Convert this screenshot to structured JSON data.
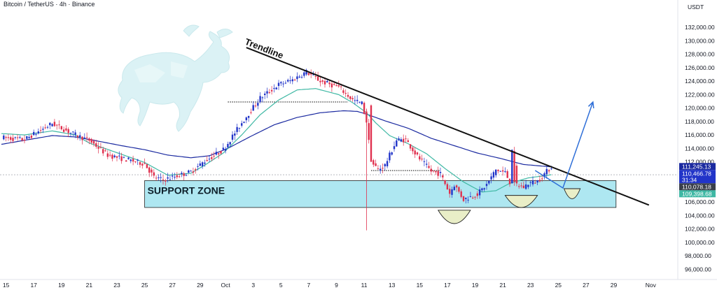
{
  "header": {
    "title": "Bitcoin / TetherUS · 4h · Binance",
    "currency": "USDT"
  },
  "colors": {
    "up": "#2134c9",
    "down": "#e0304e",
    "ema_fast": "#3fb8a4",
    "ema_slow": "#1b2aa0",
    "trend": "#111111",
    "zone_fill": "#aee7f1",
    "zone_stroke": "#222222",
    "projection": "#2f6fd8",
    "curve": "#e9eec7"
  },
  "chart_data": {
    "type": "candlestick",
    "ylim": [
      95000,
      134000
    ],
    "y_ticks": [
      96000,
      98000,
      100000,
      102000,
      104000,
      106000,
      108000,
      110000,
      112000,
      114000,
      116000,
      118000,
      120000,
      122000,
      124000,
      126000,
      128000,
      130000,
      132000
    ],
    "y_tick_labels": [
      "96,000.00",
      "98,000.00",
      "100,000.00",
      "102,000.00",
      "104,000.00",
      "106,000.00",
      "108,000.00",
      "110,000.00",
      "112,000.00",
      "114,000.00",
      "116,000.00",
      "118,000.00",
      "120,000.00",
      "122,000.00",
      "124,000.00",
      "126,000.00",
      "128,000.00",
      "130,000.00",
      "132,000.00"
    ],
    "x_ticks": [
      {
        "label": "15",
        "idx": 2
      },
      {
        "label": "17",
        "idx": 14
      },
      {
        "label": "19",
        "idx": 26
      },
      {
        "label": "21",
        "idx": 38
      },
      {
        "label": "23",
        "idx": 50
      },
      {
        "label": "25",
        "idx": 62
      },
      {
        "label": "27",
        "idx": 74
      },
      {
        "label": "29",
        "idx": 86
      },
      {
        "label": "Oct",
        "idx": 97
      },
      {
        "label": "3",
        "idx": 109
      },
      {
        "label": "5",
        "idx": 121
      },
      {
        "label": "7",
        "idx": 133
      },
      {
        "label": "9",
        "idx": 145
      },
      {
        "label": "11",
        "idx": 157
      },
      {
        "label": "13",
        "idx": 169
      },
      {
        "label": "15",
        "idx": 181
      },
      {
        "label": "17",
        "idx": 193
      },
      {
        "label": "19",
        "idx": 205
      },
      {
        "label": "21",
        "idx": 217
      },
      {
        "label": "23",
        "idx": 229
      },
      {
        "label": "25",
        "idx": 241
      },
      {
        "label": "27",
        "idx": 253
      },
      {
        "label": "29",
        "idx": 265
      },
      {
        "label": "Nov",
        "idx": 281
      }
    ],
    "close_anchors": [
      [
        0,
        115600
      ],
      [
        10,
        115300
      ],
      [
        22,
        117700
      ],
      [
        32,
        116000
      ],
      [
        38,
        115200
      ],
      [
        46,
        113000
      ],
      [
        52,
        112500
      ],
      [
        62,
        111700
      ],
      [
        66,
        109700
      ],
      [
        70,
        109300
      ],
      [
        82,
        110500
      ],
      [
        88,
        112100
      ],
      [
        96,
        113800
      ],
      [
        104,
        117800
      ],
      [
        112,
        121500
      ],
      [
        120,
        123500
      ],
      [
        126,
        124200
      ],
      [
        132,
        125400
      ],
      [
        138,
        124000
      ],
      [
        146,
        123100
      ],
      [
        152,
        121200
      ],
      [
        156,
        120700
      ],
      [
        158,
        118000
      ],
      [
        160,
        112000
      ],
      [
        163,
        110800
      ],
      [
        166,
        111500
      ],
      [
        171,
        115200
      ],
      [
        175,
        115300
      ],
      [
        180,
        112800
      ],
      [
        186,
        110600
      ],
      [
        190,
        110200
      ],
      [
        194,
        107300
      ],
      [
        196,
        108600
      ],
      [
        200,
        106400
      ],
      [
        206,
        107200
      ],
      [
        210,
        108600
      ],
      [
        214,
        110800
      ],
      [
        218,
        110400
      ],
      [
        220,
        109000
      ],
      [
        221,
        113800
      ],
      [
        223,
        108600
      ],
      [
        226,
        108200
      ],
      [
        228,
        108800
      ],
      [
        232,
        109100
      ],
      [
        238,
        111300
      ]
    ],
    "ema_fast_anchors": [
      [
        0,
        116200
      ],
      [
        10,
        116000
      ],
      [
        22,
        116600
      ],
      [
        32,
        116000
      ],
      [
        38,
        114800
      ],
      [
        48,
        113600
      ],
      [
        62,
        111900
      ],
      [
        72,
        110000
      ],
      [
        82,
        110300
      ],
      [
        88,
        111500
      ],
      [
        96,
        113300
      ],
      [
        104,
        116000
      ],
      [
        112,
        119000
      ],
      [
        120,
        121200
      ],
      [
        128,
        122700
      ],
      [
        136,
        122900
      ],
      [
        146,
        122000
      ],
      [
        152,
        120800
      ],
      [
        158,
        119300
      ],
      [
        162,
        117800
      ],
      [
        168,
        115900
      ],
      [
        176,
        114700
      ],
      [
        184,
        113200
      ],
      [
        192,
        111000
      ],
      [
        200,
        109000
      ],
      [
        208,
        107500
      ],
      [
        214,
        107700
      ],
      [
        220,
        108800
      ],
      [
        228,
        109600
      ],
      [
        238,
        110078
      ]
    ],
    "ema_slow_anchors": [
      [
        0,
        114600
      ],
      [
        10,
        115200
      ],
      [
        22,
        115900
      ],
      [
        32,
        115700
      ],
      [
        40,
        115200
      ],
      [
        52,
        114400
      ],
      [
        62,
        113800
      ],
      [
        72,
        113000
      ],
      [
        82,
        112600
      ],
      [
        90,
        112900
      ],
      [
        98,
        114000
      ],
      [
        108,
        115800
      ],
      [
        118,
        117500
      ],
      [
        128,
        118600
      ],
      [
        138,
        119300
      ],
      [
        148,
        119600
      ],
      [
        154,
        119500
      ],
      [
        158,
        119100
      ],
      [
        166,
        118100
      ],
      [
        176,
        117000
      ],
      [
        186,
        115500
      ],
      [
        196,
        114400
      ],
      [
        206,
        113300
      ],
      [
        216,
        112500
      ],
      [
        226,
        111600
      ],
      [
        238,
        111245
      ]
    ],
    "current_price": 110078.18,
    "price_badges": [
      {
        "value": 111245.13,
        "label": "111,245.13",
        "bg": "#1b2aa0"
      },
      {
        "value": 110466.78,
        "label": "110,466.78",
        "bg": "#2134c9",
        "sub": "31:34"
      },
      {
        "value": 110078.18,
        "label": "110,078.18",
        "bg": "#3a3f4b"
      },
      {
        "value": 109398.68,
        "label": "109,398.68",
        "bg": "#3fb8a4"
      }
    ],
    "support_zone": {
      "label": "SUPPORT ZONE",
      "y_low": 105200,
      "y_high": 109200,
      "x_from": 62,
      "x_to": 266
    },
    "trendline": {
      "label": "Trendline",
      "from": [
        88,
        131000
      ],
      "to": [
        256,
        106400
      ]
    },
    "dotted_levels": [
      {
        "y": 120900,
        "x_from": 98,
        "x_to": 150
      },
      {
        "y": 110700,
        "x_from": 160,
        "x_to": 190
      }
    ],
    "wick_line": {
      "idx": 158,
      "y_from": 119800,
      "y_to": 101800
    },
    "projection": [
      [
        231,
        110700
      ],
      [
        243,
        108100
      ],
      [
        256,
        120900
      ]
    ],
    "curves": [
      {
        "center_idx": 196,
        "y_top": 104800,
        "depth": 2000,
        "half_width": 7
      },
      {
        "center_idx": 225,
        "y_top": 107000,
        "depth": 1800,
        "half_width": 7
      },
      {
        "center_idx": 247,
        "y_top": 108000,
        "depth": 1500,
        "half_width": 3.5
      }
    ]
  }
}
